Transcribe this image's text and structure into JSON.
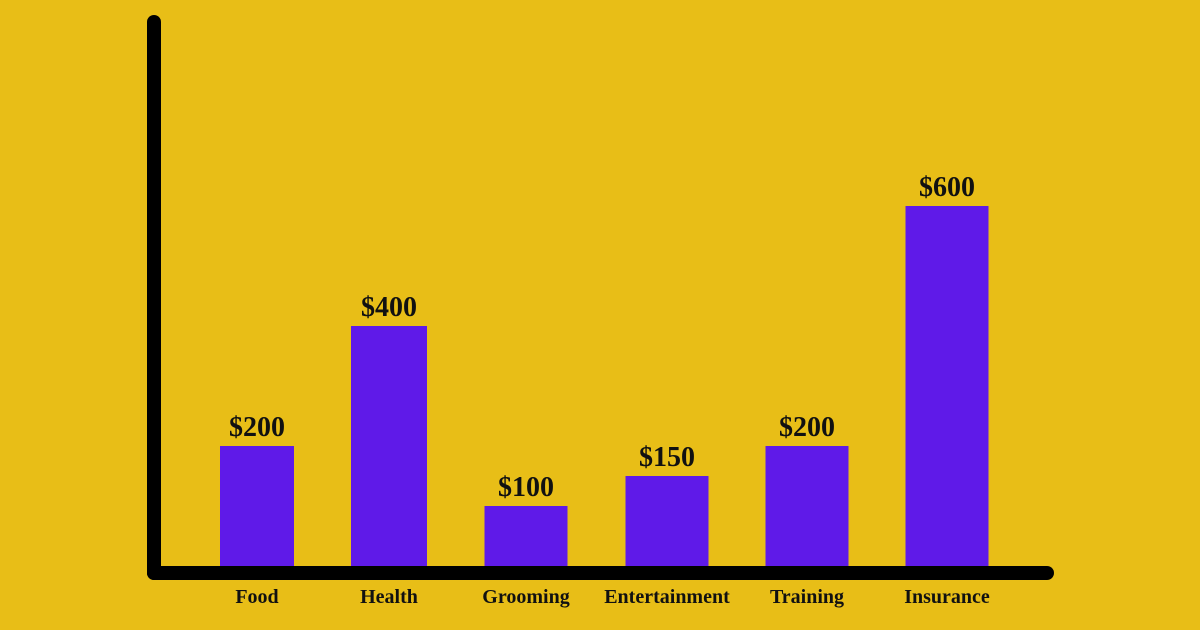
{
  "chart_data": {
    "type": "bar",
    "title": "",
    "xlabel": "",
    "ylabel": "",
    "categories": [
      "Food",
      "Health",
      "Grooming",
      "Entertainment",
      "Training",
      "Insurance"
    ],
    "values": [
      200,
      400,
      100,
      150,
      200,
      600
    ],
    "value_labels": [
      "$200",
      "$400",
      "$100",
      "$150",
      "$200",
      "$600"
    ],
    "ylim": [
      0,
      720
    ],
    "grid": false,
    "legend": "none"
  },
  "colors": {
    "background": "#E8BE17",
    "bar": "#5F1AE8",
    "axis": "#000000",
    "text": "#111111"
  }
}
